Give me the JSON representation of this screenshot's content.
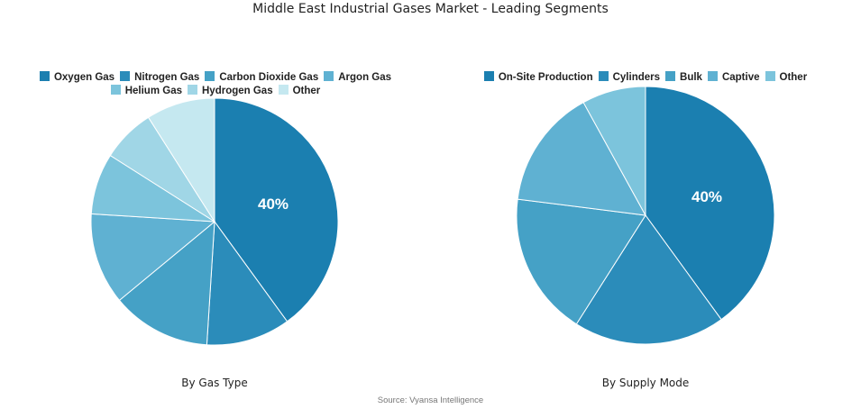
{
  "title": "Middle East Industrial Gases Market - Leading Segments",
  "source": "Source: Vyansa Intelligence",
  "chart_data": [
    {
      "type": "pie",
      "subtitle": "By Gas Type",
      "legend_placement": "top",
      "categories": [
        "Oxygen Gas",
        "Nitrogen Gas",
        "Carbon Dioxide Gas",
        "Argon Gas",
        "Helium Gas",
        "Hydrogen Gas",
        "Other"
      ],
      "values": [
        40,
        11,
        13,
        12,
        8,
        7,
        9
      ],
      "colors": [
        "#1b7fb0",
        "#2b8cba",
        "#45a1c6",
        "#5fb1d2",
        "#7cc4dc",
        "#a0d6e6",
        "#c5e8f0"
      ],
      "data_labels": [
        "40%",
        "",
        "",
        "",
        "",
        "",
        ""
      ]
    },
    {
      "type": "pie",
      "subtitle": "By Supply Mode",
      "legend_placement": "top",
      "categories": [
        "On-Site Production",
        "Cylinders",
        "Bulk",
        "Captive",
        "Other"
      ],
      "values": [
        40,
        19,
        18,
        15,
        8
      ],
      "colors": [
        "#1b7fb0",
        "#2b8cba",
        "#45a1c6",
        "#5fb1d2",
        "#7cc4dc"
      ],
      "data_labels": [
        "40%",
        "",
        "",
        "",
        ""
      ]
    }
  ]
}
